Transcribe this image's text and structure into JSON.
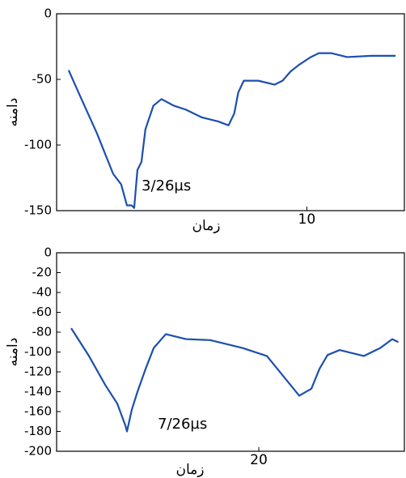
{
  "chart_data": [
    {
      "type": "line",
      "xlabel": "زمان",
      "ylabel": "دامنه",
      "annotation": "3/26µs",
      "xlim": [
        0,
        13.9
      ],
      "xticks": [
        10
      ],
      "ylim": [
        -150,
        0
      ],
      "yticks": [
        0,
        -50,
        -100,
        -150
      ],
      "x": [
        0.48,
        0.97,
        1.61,
        2.26,
        2.58,
        2.81,
        3.0,
        3.1,
        3.23,
        3.39,
        3.55,
        3.87,
        4.19,
        4.68,
        5.16,
        5.81,
        6.45,
        6.87,
        7.1,
        7.26,
        7.48,
        8.06,
        8.71,
        9.03,
        9.35,
        9.68,
        10.16,
        10.48,
        10.97,
        11.61,
        12.58,
        13.55
      ],
      "series": [
        {
          "color": "#1c4fae",
          "values": [
            -43,
            -64,
            -91,
            -122,
            -130,
            -146,
            -146,
            -148,
            -119,
            -113,
            -88,
            -70,
            -65,
            -70,
            -73,
            -79,
            -82,
            -85,
            -76,
            -60,
            -51,
            -51,
            -54,
            -51,
            -44,
            -39,
            -33,
            -30,
            -30,
            -33,
            -32,
            -32
          ]
        }
      ]
    },
    {
      "type": "line",
      "xlabel": "زمان",
      "ylabel": "دامنه",
      "annotation": "7/26µs",
      "xlim": [
        0,
        34.4
      ],
      "xticks": [
        20
      ],
      "ylim": [
        -200,
        0
      ],
      "yticks": [
        0,
        -20,
        -40,
        -60,
        -80,
        -100,
        -120,
        -140,
        -160,
        -180,
        -200
      ],
      "x": [
        1.44,
        3.2,
        4.8,
        6.0,
        6.8,
        6.96,
        7.44,
        8.0,
        8.8,
        9.6,
        10.8,
        12.8,
        15.2,
        18.4,
        20.8,
        24.0,
        25.2,
        26.0,
        26.8,
        28.0,
        30.4,
        32.0,
        33.2,
        33.8
      ],
      "series": [
        {
          "color": "#1c4fae",
          "values": [
            -76,
            -104,
            -133,
            -152,
            -174,
            -180,
            -158,
            -140,
            -117,
            -96,
            -82,
            -87,
            -88,
            -96,
            -104,
            -144,
            -137,
            -117,
            -103,
            -98,
            -104,
            -96,
            -87,
            -90
          ]
        }
      ]
    }
  ]
}
